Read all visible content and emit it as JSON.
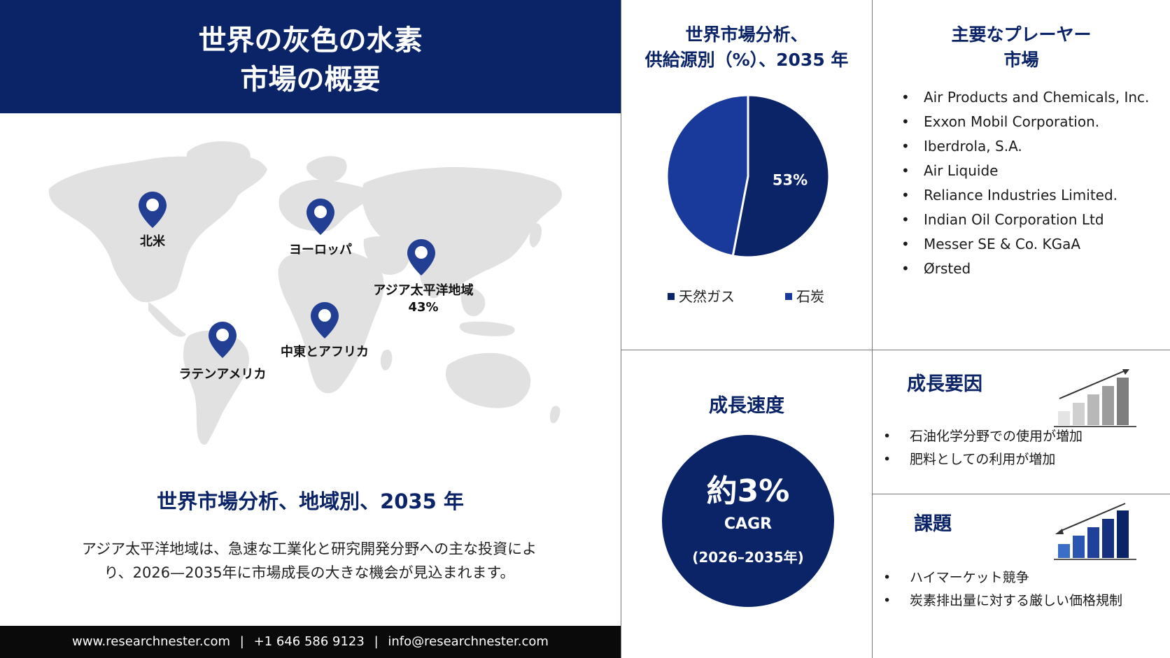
{
  "title": {
    "line1": "世界の灰色の水素",
    "line2": "市場の概要"
  },
  "map": {
    "regions": [
      {
        "name": "北米",
        "value": ""
      },
      {
        "name": "ヨーロッパ",
        "value": ""
      },
      {
        "name": "アジア太平洋地域",
        "value": "43%"
      },
      {
        "name": "中東とアフリカ",
        "value": ""
      },
      {
        "name": "ラテンアメリカ",
        "value": ""
      }
    ],
    "pin_color": "#233f94",
    "land_color": "#e0e0e0"
  },
  "regional": {
    "heading": "世界市場分析、地域別、2035 年",
    "text": "アジア太平洋地域は、急速な工業化と研究開発分野への主な投資により、2026—2035年に市場成長の大きな機会が見込まれます。"
  },
  "footer": {
    "website": "www.researchnester.com",
    "separator": "|",
    "phone": "+1 646 586 9123",
    "email": "info@researchnester.com"
  },
  "pie": {
    "title_line1": "世界市場分析、",
    "title_line2": "供給源別（%）、2035 年",
    "slice_label": "53%",
    "colors": {
      "natural_gas": "#0b2467",
      "coal": "#1a3a9b"
    }
  },
  "chart_data": {
    "type": "pie",
    "title": "世界市場分析、供給源別（%）、2035 年",
    "categories": [
      "天然ガス",
      "石炭"
    ],
    "values": [
      53,
      47
    ],
    "labels": [
      "53%",
      ""
    ]
  },
  "players": {
    "title_line1": "主要なプレーヤー",
    "title_line2": "市場",
    "items": [
      "Air Products and Chemicals, Inc.",
      "Exxon Mobil Corporation.",
      "Iberdrola, S.A.",
      "Air Liquide",
      "Reliance Industries Limited.",
      "Indian Oil Corporation Ltd",
      "Messer SE & Co. KGaA",
      "Ørsted"
    ]
  },
  "growth": {
    "title": "成長速度",
    "value": "約3%",
    "label": "CAGR",
    "period": "(2026–2035年)"
  },
  "drivers": {
    "title": "成長要因",
    "items": [
      "石油化学分野での使用が増加",
      "肥料としての利用が増加"
    ]
  },
  "challenges": {
    "title": "課題",
    "items": [
      "ハイマーケット競争",
      "炭素排出量に対する厳しい価格規制"
    ]
  }
}
